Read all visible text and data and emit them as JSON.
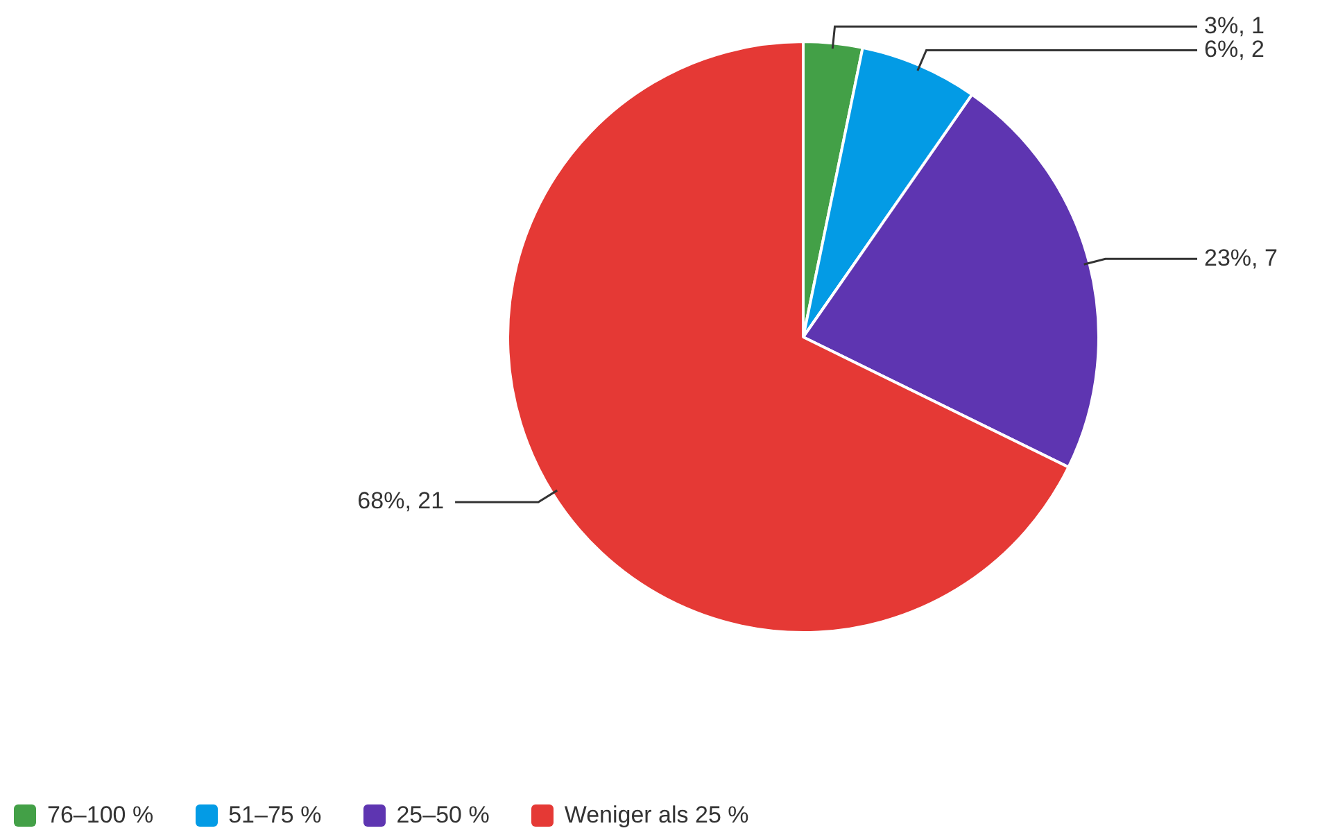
{
  "chart_data": {
    "type": "pie",
    "categories": [
      "76–100 %",
      "51–75 %",
      "25–50 %",
      "Weniger als 25 %"
    ],
    "values": [
      1,
      2,
      7,
      21
    ],
    "colors": [
      "#43a047",
      "#039be5",
      "#5e35b1",
      "#e53935"
    ],
    "value_labels": [
      "3%, 1",
      "6%, 2",
      "23%, 7",
      "68%, 21"
    ],
    "legend": "bottom left"
  }
}
